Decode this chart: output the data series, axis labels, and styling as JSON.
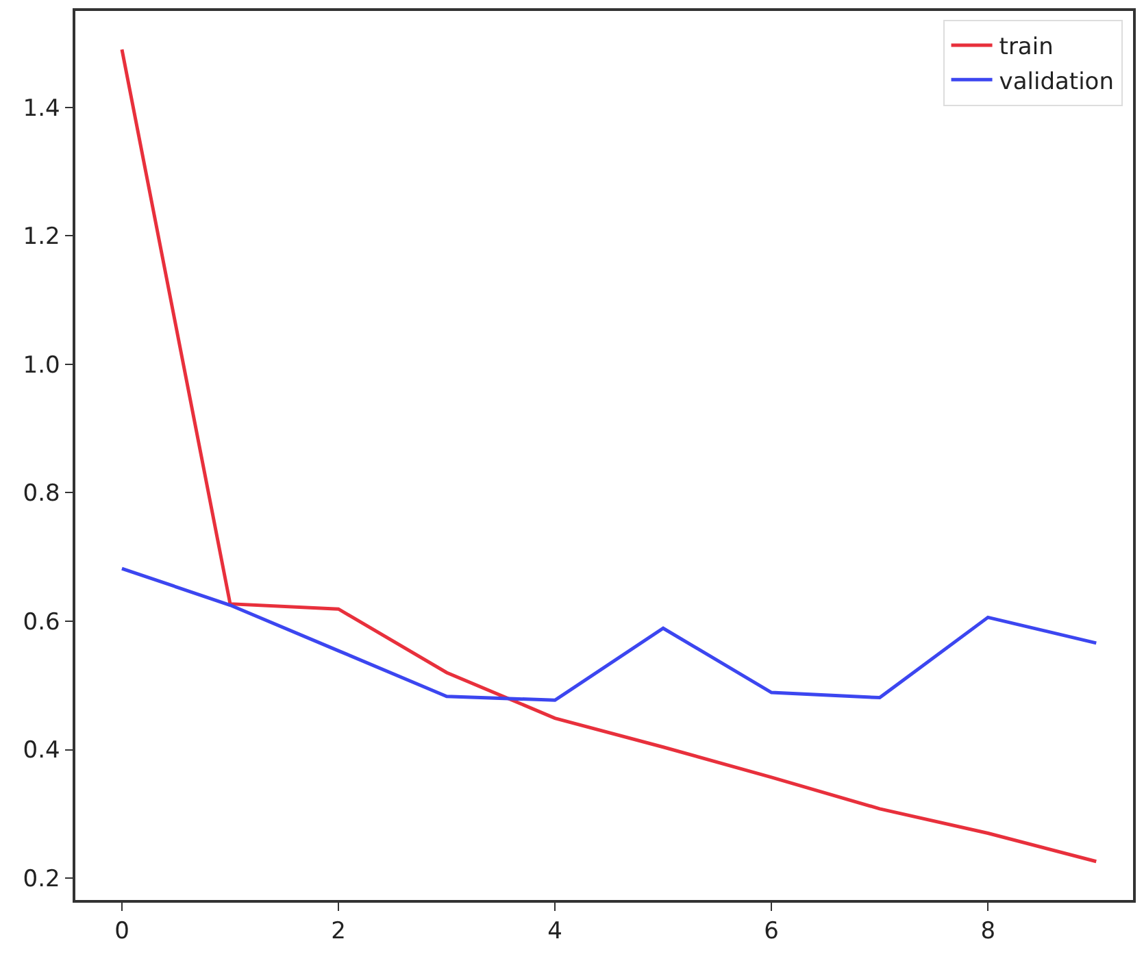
{
  "chart_data": {
    "type": "line",
    "x": [
      0,
      1,
      2,
      3,
      4,
      5,
      6,
      7,
      8,
      9
    ],
    "series": [
      {
        "name": "train",
        "color": "#e8303c",
        "values": [
          1.49,
          0.627,
          0.619,
          0.52,
          0.449,
          0.404,
          0.357,
          0.308,
          0.27,
          0.226
        ]
      },
      {
        "name": "validation",
        "color": "#3c46f0",
        "values": [
          0.682,
          0.625,
          0.554,
          0.483,
          0.477,
          0.589,
          0.489,
          0.481,
          0.606,
          0.566
        ]
      }
    ],
    "xlim": [
      -0.43,
      9.34
    ],
    "xticks": [
      0,
      2,
      4,
      6,
      8
    ],
    "ylim": [
      0.166,
      1.55
    ],
    "yticks": [
      0.2,
      0.4,
      0.6,
      0.8,
      {
        "value": 1,
        "label": "1.0"
      },
      1.2,
      1.4
    ],
    "legend": "top right",
    "marker": "none",
    "line_style": "solid"
  }
}
